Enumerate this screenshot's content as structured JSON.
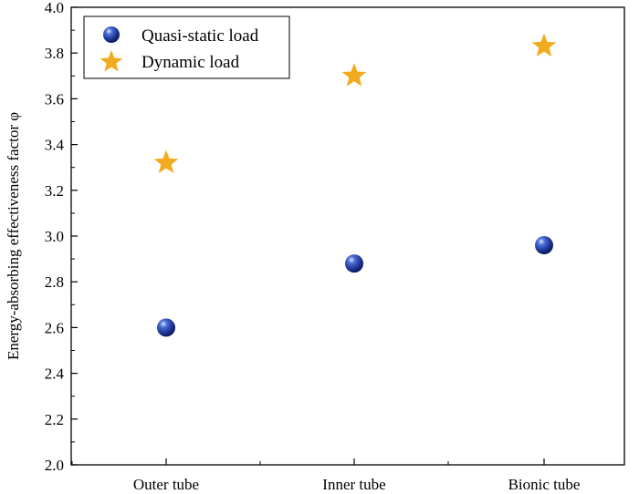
{
  "chart_data": {
    "type": "scatter",
    "categories": [
      "Outer tube",
      "Inner tube",
      "Bionic tube"
    ],
    "series": [
      {
        "name": "Quasi-static load",
        "marker": "sphere",
        "color": "#1f3ea8",
        "values": [
          2.6,
          2.88,
          2.96
        ]
      },
      {
        "name": "Dynamic load",
        "marker": "star",
        "color": "#f2aa1e",
        "values": [
          3.32,
          3.7,
          3.83
        ]
      }
    ],
    "ylabel": "Energy-absorbing effectiveness factor φ",
    "xlabel": "",
    "ylim": [
      2.0,
      4.0
    ],
    "yticks": [
      2.0,
      2.2,
      2.4,
      2.6,
      2.8,
      3.0,
      3.2,
      3.4,
      3.6,
      3.8,
      4.0
    ],
    "ytick_labels": [
      "2.0",
      "2.2",
      "2.4",
      "2.6",
      "2.8",
      "3.0",
      "3.2",
      "3.4",
      "3.6",
      "3.8",
      "4.0"
    ],
    "grid": false,
    "legend_position": "top-left"
  }
}
